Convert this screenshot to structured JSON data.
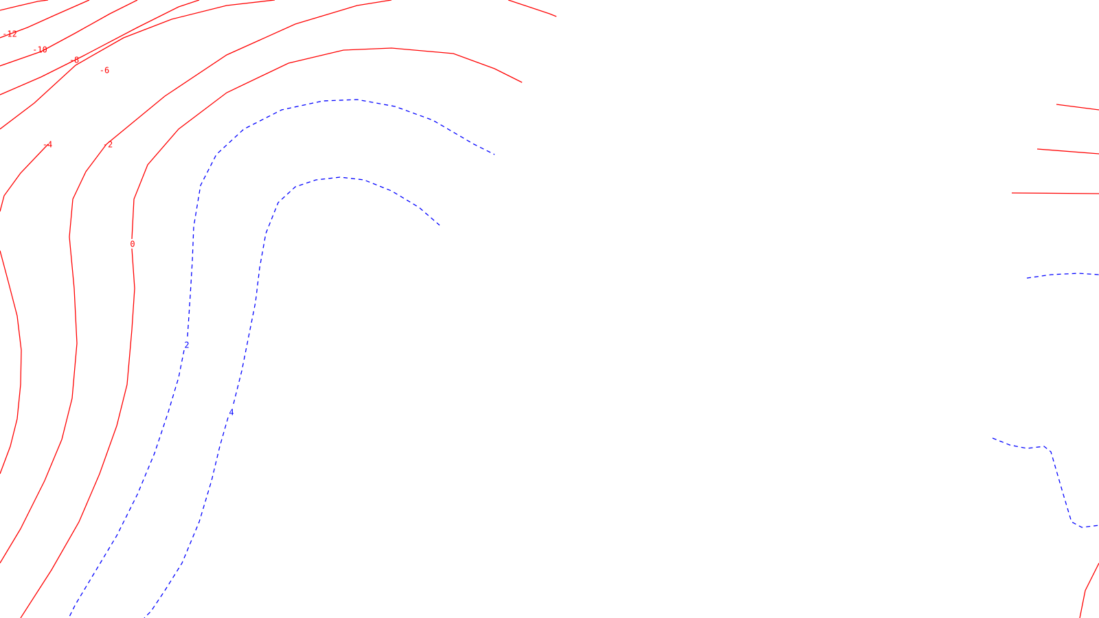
{
  "chart_data": {
    "type": "contour",
    "title": "",
    "xlabel": "",
    "ylabel": "",
    "grid": false,
    "legend": "none",
    "colors": {
      "negative": "#ff0000",
      "positive": "#0000ff",
      "background": "#ffffff"
    },
    "line_styles": {
      "negative": "solid",
      "positive": "dashed"
    },
    "contour_levels": [
      -12,
      -10,
      -8,
      -6,
      -4,
      -2,
      0,
      2,
      4
    ],
    "labels": [
      "-12",
      "-10",
      "-8",
      "-6",
      "-4",
      "-2",
      "0",
      "2",
      "4"
    ]
  }
}
